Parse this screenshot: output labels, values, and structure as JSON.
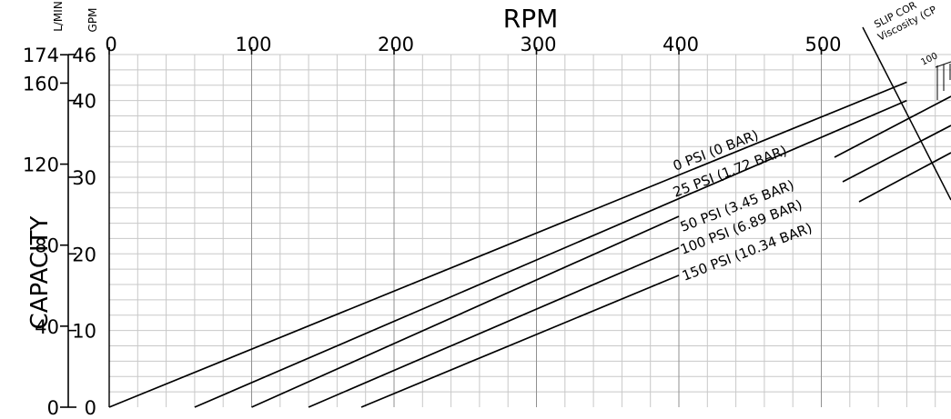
{
  "chart_data": {
    "type": "line",
    "title": "RPM",
    "ylabel": "CAPACITY",
    "y_units": [
      "L/MIN",
      "GPM"
    ],
    "slip_label_lines": [
      "SLIP COR",
      "Viscosity (CP"
    ],
    "slip_tick_label": "100",
    "x_ticks": [
      0,
      100,
      200,
      300,
      400,
      500
    ],
    "xlim": [
      0,
      590
    ],
    "ylim_gpm": [
      0,
      46
    ],
    "gpm_ticks": [
      "0",
      "10",
      "20",
      "30",
      "40",
      "46"
    ],
    "lmin_ticks": [
      "0",
      "40",
      "80",
      "120",
      "160",
      "174"
    ],
    "grid": true,
    "series": [
      {
        "name": "0 PSI (0 BAR)",
        "rpm_at_zero": 0,
        "points": [
          [
            0,
            0
          ],
          [
            560,
            42.4
          ]
        ]
      },
      {
        "name": "25 PSI (1.72 BAR)",
        "rpm_at_zero": 60,
        "points": [
          [
            60,
            0
          ],
          [
            560,
            40.0
          ]
        ]
      },
      {
        "name": "50 PSI (3.45 BAR)",
        "rpm_at_zero": 100,
        "points": [
          [
            100,
            0
          ],
          [
            400,
            24.9
          ]
        ]
      },
      {
        "name": "100 PSI (6.89 BAR)",
        "rpm_at_zero": 140,
        "points": [
          [
            140,
            0
          ],
          [
            400,
            20.8
          ]
        ]
      },
      {
        "name": "150 PSI (10.34 BAR)",
        "rpm_at_zero": 177,
        "points": [
          [
            177,
            0
          ],
          [
            400,
            17.2
          ]
        ]
      }
    ]
  }
}
